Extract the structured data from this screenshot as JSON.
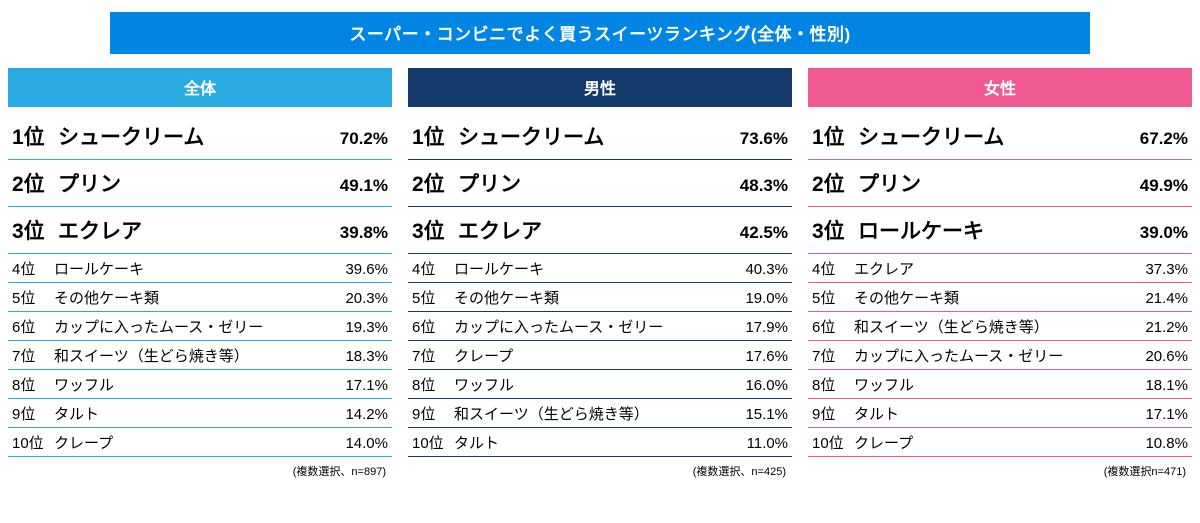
{
  "title": "スーパー・コンビニでよく買うスイーツランキング(全体・性別)",
  "title_bg": "#0085e5",
  "text_color": "#000000",
  "columns": [
    {
      "header": "全体",
      "header_bg": "#29abe2",
      "underline_color": "#29abe2",
      "note": "(複数選択、n=897)",
      "rows": [
        {
          "rank": "1位",
          "name": "シュークリーム",
          "pct": "70.2%",
          "top": true
        },
        {
          "rank": "2位",
          "name": "プリン",
          "pct": "49.1%",
          "top": true
        },
        {
          "rank": "3位",
          "name": "エクレア",
          "pct": "39.8%",
          "top": true
        },
        {
          "rank": "4位",
          "name": "ロールケーキ",
          "pct": "39.6%",
          "top": false
        },
        {
          "rank": "5位",
          "name": "その他ケーキ類",
          "pct": "20.3%",
          "top": false
        },
        {
          "rank": "6位",
          "name": "カップに入ったムース・ゼリー",
          "pct": "19.3%",
          "top": false
        },
        {
          "rank": "7位",
          "name": "和スイーツ（生どら焼き等）",
          "pct": "18.3%",
          "top": false
        },
        {
          "rank": "8位",
          "name": "ワッフル",
          "pct": "17.1%",
          "top": false
        },
        {
          "rank": "9位",
          "name": "タルト",
          "pct": "14.2%",
          "top": false
        },
        {
          "rank": "10位",
          "name": "クレープ",
          "pct": "14.0%",
          "top": false
        }
      ]
    },
    {
      "header": "男性",
      "header_bg": "#143a6c",
      "underline_color": "#143a6c",
      "note": "(複数選択、n=425)",
      "rows": [
        {
          "rank": "1位",
          "name": "シュークリーム",
          "pct": "73.6%",
          "top": true
        },
        {
          "rank": "2位",
          "name": "プリン",
          "pct": "48.3%",
          "top": true
        },
        {
          "rank": "3位",
          "name": "エクレア",
          "pct": "42.5%",
          "top": true
        },
        {
          "rank": "4位",
          "name": "ロールケーキ",
          "pct": "40.3%",
          "top": false
        },
        {
          "rank": "5位",
          "name": "その他ケーキ類",
          "pct": "19.0%",
          "top": false
        },
        {
          "rank": "6位",
          "name": "カップに入ったムース・ゼリー",
          "pct": "17.9%",
          "top": false
        },
        {
          "rank": "7位",
          "name": "クレープ",
          "pct": "17.6%",
          "top": false
        },
        {
          "rank": "8位",
          "name": "ワッフル",
          "pct": "16.0%",
          "top": false
        },
        {
          "rank": "9位",
          "name": "和スイーツ（生どら焼き等）",
          "pct": "15.1%",
          "top": false
        },
        {
          "rank": "10位",
          "name": "タルト",
          "pct": "11.0%",
          "top": false
        }
      ]
    },
    {
      "header": "女性",
      "header_bg": "#ef5a92",
      "underline_color": "#ef5a92",
      "note": "(複数選択n=471)",
      "rows": [
        {
          "rank": "1位",
          "name": "シュークリーム",
          "pct": "67.2%",
          "top": true
        },
        {
          "rank": "2位",
          "name": "プリン",
          "pct": "49.9%",
          "top": true
        },
        {
          "rank": "3位",
          "name": "ロールケーキ",
          "pct": "39.0%",
          "top": true
        },
        {
          "rank": "4位",
          "name": "エクレア",
          "pct": "37.3%",
          "top": false
        },
        {
          "rank": "5位",
          "name": "その他ケーキ類",
          "pct": "21.4%",
          "top": false
        },
        {
          "rank": "6位",
          "name": "和スイーツ（生どら焼き等）",
          "pct": "21.2%",
          "top": false
        },
        {
          "rank": "7位",
          "name": "カップに入ったムース・ゼリー",
          "pct": "20.6%",
          "top": false
        },
        {
          "rank": "8位",
          "name": "ワッフル",
          "pct": "18.1%",
          "top": false
        },
        {
          "rank": "9位",
          "name": "タルト",
          "pct": "17.1%",
          "top": false
        },
        {
          "rank": "10位",
          "name": "クレープ",
          "pct": "10.8%",
          "top": false
        }
      ]
    }
  ]
}
